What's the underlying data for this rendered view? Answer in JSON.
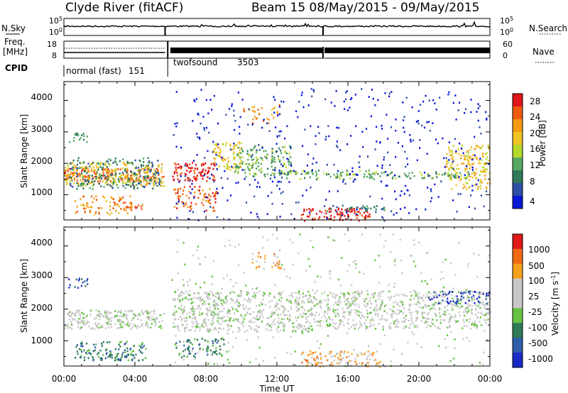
{
  "header": {
    "title": "Clyde River (fitACF)",
    "subtitle": "Beam 15 08/May/2015 - 09/May/2015"
  },
  "noise_panel": {
    "left_label": "N.Sky",
    "left_ticks": [
      "10^5",
      "10^0"
    ],
    "right_ticks": [
      "10^5",
      "10^0"
    ],
    "right_label": "N.Search"
  },
  "freq_panel": {
    "left_label_1": "Freq.",
    "left_label_2": "[MHz]",
    "left_ticks": [
      "18",
      "8"
    ],
    "right_ticks": [
      "60",
      "0"
    ],
    "right_label": "Nave"
  },
  "cpid_panel": {
    "label": "CPID",
    "modes": [
      {
        "name": "normal (fast)",
        "id": "151"
      },
      {
        "name": "twofsound",
        "id": "3503"
      }
    ]
  },
  "chart_data": [
    {
      "type": "heatmap",
      "ylabel": "Slant Range [km]",
      "yticks": [
        "1000",
        "2000",
        "3000",
        "4000"
      ],
      "ylim": [
        200,
        4600
      ],
      "xlim": [
        0,
        24
      ],
      "colorbar": {
        "label": "Power [dB]",
        "ticks": [
          "4",
          "8",
          "12",
          "16",
          "20",
          "24",
          "28"
        ],
        "colors": [
          "#0a18d8",
          "#2e4fa6",
          "#2f7a58",
          "#57a862",
          "#b4d82a",
          "#f0c224",
          "#f49a12",
          "#ee5a10",
          "#e0161a"
        ]
      }
    },
    {
      "type": "heatmap",
      "ylabel": "Slant Range [km]",
      "yticks": [
        "1000",
        "2000",
        "3000",
        "4000"
      ],
      "ylim": [
        200,
        4600
      ],
      "xlim": [
        0,
        24
      ],
      "colorbar": {
        "label": "Velocity [m s^-1]",
        "ticks": [
          "1000",
          "500",
          "100",
          "25",
          "-25",
          "-100",
          "-500",
          "-1000"
        ],
        "colors": [
          "#1a2ac8",
          "#2e5ea8",
          "#2f7a58",
          "#66c243",
          "#c8c8c8",
          "#c8c8c8",
          "#f5a21a",
          "#f06a14",
          "#e01818"
        ]
      }
    }
  ],
  "xaxis": {
    "ticks": [
      "00:00",
      "04:00",
      "08:00",
      "12:00",
      "16:00",
      "20:00",
      "00:00"
    ],
    "label": "Time UT"
  }
}
